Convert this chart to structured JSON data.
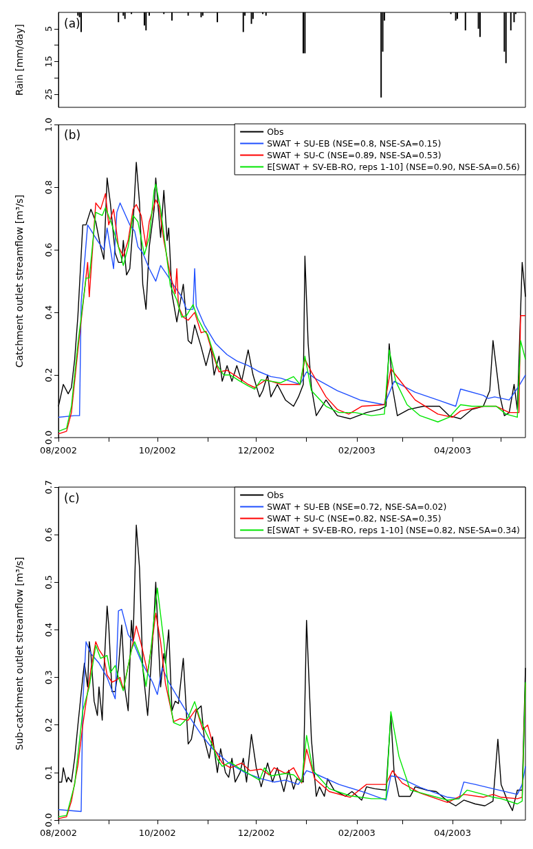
{
  "chart_data": [
    {
      "type": "bar",
      "title": "(a)",
      "ylabel": "Rain [mm/day]",
      "xlim": [
        "2002-08-01",
        "2003-05-16"
      ],
      "ylim": [
        29,
        0
      ],
      "yticks": [
        5,
        {
          "value": 10,
          "label": null
        },
        15,
        {
          "value": 20,
          "label": null
        },
        25
      ],
      "tick_labels": "y",
      "color": "#000000",
      "x": [
        "2002-08-13",
        "2002-08-14",
        "2002-08-15",
        "2002-09-07",
        "2002-09-10",
        "2002-09-11",
        "2002-09-15",
        "2002-09-23",
        "2002-09-24",
        "2002-09-26",
        "2002-10-05",
        "2002-10-10",
        "2002-10-20",
        "2002-10-28",
        "2002-10-29",
        "2002-11-07",
        "2002-11-23",
        "2002-11-24",
        "2002-11-28",
        "2002-11-29",
        "2002-12-05",
        "2002-12-07",
        "2002-12-30",
        "2002-12-31",
        "2003-02-16",
        "2003-02-17",
        "2003-02-18",
        "2003-03-31",
        "2003-04-03",
        "2003-04-04",
        "2003-04-09",
        "2003-04-17",
        "2003-04-18",
        "2003-05-03",
        "2003-05-04",
        "2003-05-07",
        "2003-05-09",
        "2003-05-10"
      ],
      "values": [
        1,
        1.5,
        6,
        3,
        1,
        2,
        0.5,
        4,
        5.5,
        1,
        0.5,
        2.5,
        1,
        1.5,
        1,
        3,
        6,
        1,
        3.5,
        2,
        0.5,
        1,
        12.5,
        12.5,
        26,
        12,
        2.5,
        0.5,
        2.5,
        2,
        5.5,
        5,
        7.5,
        12,
        15.5,
        5.5,
        3,
        0.5
      ]
    },
    {
      "type": "line",
      "title": "(b)",
      "ylabel": "Catchment outlet streamflow [m³/s]",
      "legend": "top right",
      "xlim": [
        "2002-08-01",
        "2003-05-16"
      ],
      "xticks": [
        {
          "value": "2002-08-01",
          "label": "08/2002"
        },
        {
          "value": "2002-09-01",
          "label": null
        },
        {
          "value": "2002-10-01",
          "label": "10/2002"
        },
        {
          "value": "2002-11-01",
          "label": null
        },
        {
          "value": "2002-12-01",
          "label": "12/2002"
        },
        {
          "value": "2003-01-01",
          "label": null
        },
        {
          "value": "2003-02-01",
          "label": "02/2003"
        },
        {
          "value": "2003-03-01",
          "label": null
        },
        {
          "value": "2003-04-01",
          "label": "04/2003"
        },
        {
          "value": "2003-05-01",
          "label": null
        }
      ],
      "ylim": [
        0,
        1
      ],
      "yticks": [
        {
          "value": 0,
          "label": "0.0"
        },
        {
          "value": 0.2,
          "label": "0.2"
        },
        {
          "value": 0.4,
          "label": "0.4"
        },
        {
          "value": 0.6,
          "label": "0.6"
        },
        {
          "value": 0.8,
          "label": "0.8"
        },
        {
          "value": 1,
          "label": "1.0"
        }
      ],
      "series": [
        {
          "name": "Obs",
          "color": "#000000",
          "x": [
            "2002-08-01",
            "2002-08-04",
            "2002-08-07",
            "2002-08-09",
            "2002-08-11",
            "2002-08-13",
            "2002-08-16",
            "2002-08-18",
            "2002-08-21",
            "2002-08-24",
            "2002-08-27",
            "2002-08-29",
            "2002-08-31",
            "2002-09-02",
            "2002-09-05",
            "2002-09-07",
            "2002-09-09",
            "2002-09-10",
            "2002-09-12",
            "2002-09-14",
            "2002-09-16",
            "2002-09-18",
            "2002-09-20",
            "2002-09-22",
            "2002-09-24",
            "2002-09-26",
            "2002-09-29",
            "2002-09-30",
            "2002-10-03",
            "2002-10-05",
            "2002-10-07",
            "2002-10-08",
            "2002-10-10",
            "2002-10-13",
            "2002-10-15",
            "2002-10-17",
            "2002-10-20",
            "2002-10-22",
            "2002-10-24",
            "2002-10-28",
            "2002-10-31",
            "2002-11-03",
            "2002-11-05",
            "2002-11-08",
            "2002-11-10",
            "2002-11-13",
            "2002-11-16",
            "2002-11-19",
            "2002-11-22",
            "2002-11-26",
            "2002-11-29",
            "2002-12-03",
            "2002-12-05",
            "2002-12-08",
            "2002-12-10",
            "2002-12-14",
            "2002-12-19",
            "2002-12-24",
            "2002-12-27",
            "2002-12-30",
            "2002-12-31",
            "2003-01-02",
            "2003-01-04",
            "2003-01-07",
            "2003-01-13",
            "2003-01-20",
            "2003-01-28",
            "2003-02-07",
            "2003-02-15",
            "2003-02-19",
            "2003-02-21",
            "2003-02-23",
            "2003-02-26",
            "2003-03-05",
            "2003-03-14",
            "2003-03-24",
            "2003-03-30",
            "2003-04-06",
            "2003-04-13",
            "2003-04-20",
            "2003-04-24",
            "2003-04-26",
            "2003-04-30",
            "2003-05-03",
            "2003-05-06",
            "2003-05-09",
            "2003-05-11",
            "2003-05-14",
            "2003-05-16"
          ],
          "values": [
            0.1,
            0.17,
            0.14,
            0.16,
            0.25,
            0.39,
            0.68,
            0.68,
            0.73,
            0.69,
            0.61,
            0.57,
            0.83,
            0.75,
            0.59,
            0.56,
            0.56,
            0.63,
            0.52,
            0.54,
            0.68,
            0.88,
            0.75,
            0.49,
            0.41,
            0.61,
            0.73,
            0.83,
            0.64,
            0.79,
            0.63,
            0.67,
            0.46,
            0.37,
            0.43,
            0.49,
            0.31,
            0.3,
            0.36,
            0.29,
            0.23,
            0.29,
            0.2,
            0.26,
            0.18,
            0.23,
            0.18,
            0.23,
            0.18,
            0.28,
            0.2,
            0.13,
            0.15,
            0.2,
            0.13,
            0.17,
            0.12,
            0.1,
            0.13,
            0.17,
            0.58,
            0.3,
            0.16,
            0.07,
            0.12,
            0.07,
            0.06,
            0.08,
            0.09,
            0.1,
            0.3,
            0.16,
            0.07,
            0.09,
            0.1,
            0.1,
            0.07,
            0.06,
            0.09,
            0.1,
            0.15,
            0.31,
            0.14,
            0.07,
            0.08,
            0.17,
            0.09,
            0.56,
            0.45
          ]
        },
        {
          "name": "SWAT + SU-EB (NSE=0.8, NSE-SA=0.15)",
          "color": "#1f4fff",
          "x": [
            "2002-08-01",
            "2002-08-11",
            "2002-08-14",
            "2002-08-15",
            "2002-08-19",
            "2002-08-25",
            "2002-08-29",
            "2002-08-31",
            "2002-09-04",
            "2002-09-06",
            "2002-09-08",
            "2002-09-14",
            "2002-09-17",
            "2002-09-19",
            "2002-09-22",
            "2002-09-26",
            "2002-09-30",
            "2002-10-03",
            "2002-10-07",
            "2002-10-12",
            "2002-10-16",
            "2002-10-19",
            "2002-10-23",
            "2002-10-24",
            "2002-10-25",
            "2002-10-30",
            "2002-11-06",
            "2002-11-13",
            "2002-11-19",
            "2002-11-26",
            "2002-12-03",
            "2002-12-10",
            "2002-12-16",
            "2002-12-28",
            "2003-01-01",
            "2003-01-06",
            "2003-01-20",
            "2003-02-03",
            "2003-02-18",
            "2003-02-24",
            "2003-03-09",
            "2003-03-23",
            "2003-04-03",
            "2003-04-06",
            "2003-04-20",
            "2003-04-23",
            "2003-04-27",
            "2003-05-06",
            "2003-05-12",
            "2003-05-16"
          ],
          "values": [
            0.065,
            0.07,
            0.07,
            0.43,
            0.68,
            0.63,
            0.6,
            0.67,
            0.54,
            0.72,
            0.75,
            0.68,
            0.66,
            0.61,
            0.59,
            0.54,
            0.5,
            0.55,
            0.52,
            0.48,
            0.45,
            0.41,
            0.41,
            0.54,
            0.42,
            0.36,
            0.3,
            0.265,
            0.245,
            0.23,
            0.21,
            0.195,
            0.19,
            0.17,
            0.21,
            0.19,
            0.15,
            0.12,
            0.105,
            0.18,
            0.145,
            0.12,
            0.1,
            0.155,
            0.135,
            0.125,
            0.13,
            0.12,
            0.165,
            0.2
          ]
        },
        {
          "name": "SWAT + SU-C (NSE=0.89, NSE-SA=0.53)",
          "color": "#ff0000",
          "x": [
            "2002-08-01",
            "2002-08-06",
            "2002-08-09",
            "2002-08-13",
            "2002-08-19",
            "2002-08-20",
            "2002-08-24",
            "2002-08-27",
            "2002-08-30",
            "2002-09-01",
            "2002-09-04",
            "2002-09-07",
            "2002-09-10",
            "2002-09-13",
            "2002-09-16",
            "2002-09-18",
            "2002-09-21",
            "2002-09-24",
            "2002-09-26",
            "2002-09-30",
            "2002-10-02",
            "2002-10-05",
            "2002-10-09",
            "2002-10-12",
            "2002-10-13",
            "2002-10-14",
            "2002-10-17",
            "2002-10-20",
            "2002-10-24",
            "2002-10-28",
            "2002-10-31",
            "2002-11-04",
            "2002-11-08",
            "2002-11-13",
            "2002-11-19",
            "2002-11-26",
            "2002-11-30",
            "2002-12-07",
            "2002-12-16",
            "2002-12-28",
            "2002-12-31",
            "2003-01-04",
            "2003-01-13",
            "2003-01-20",
            "2003-01-27",
            "2003-02-04",
            "2003-02-18",
            "2003-02-22",
            "2003-03-03",
            "2003-03-09",
            "2003-03-23",
            "2003-04-01",
            "2003-04-06",
            "2003-04-20",
            "2003-04-28",
            "2003-05-06",
            "2003-05-12",
            "2003-05-13",
            "2003-05-16"
          ],
          "values": [
            0.012,
            0.02,
            0.08,
            0.28,
            0.56,
            0.45,
            0.75,
            0.73,
            0.78,
            0.68,
            0.73,
            0.61,
            0.58,
            0.63,
            0.73,
            0.745,
            0.71,
            0.61,
            0.69,
            0.76,
            0.74,
            0.63,
            0.52,
            0.46,
            0.54,
            0.42,
            0.385,
            0.375,
            0.4,
            0.335,
            0.34,
            0.27,
            0.21,
            0.215,
            0.195,
            0.17,
            0.16,
            0.185,
            0.17,
            0.17,
            0.25,
            0.21,
            0.13,
            0.09,
            0.075,
            0.1,
            0.105,
            0.22,
            0.16,
            0.12,
            0.075,
            0.065,
            0.085,
            0.1,
            0.1,
            0.08,
            0.08,
            0.39,
            0.39
          ]
        },
        {
          "name": "E[SWAT + SV-EB-RO, reps 1-10] (NSE=0.90, NSE-SA=0.56)",
          "color": "#00e600",
          "x": [
            "2002-08-01",
            "2002-08-06",
            "2002-08-09",
            "2002-08-13",
            "2002-08-18",
            "2002-08-20",
            "2002-08-24",
            "2002-08-28",
            "2002-08-30",
            "2002-09-03",
            "2002-09-07",
            "2002-09-10",
            "2002-09-13",
            "2002-09-16",
            "2002-09-19",
            "2002-09-23",
            "2002-09-26",
            "2002-09-29",
            "2002-09-30",
            "2002-10-03",
            "2002-10-06",
            "2002-10-09",
            "2002-10-13",
            "2002-10-16",
            "2002-10-19",
            "2002-10-23",
            "2002-10-26",
            "2002-10-30",
            "2002-11-01",
            "2002-11-07",
            "2002-11-11",
            "2002-11-15",
            "2002-11-21",
            "2002-11-26",
            "2002-11-30",
            "2002-12-04",
            "2002-12-10",
            "2002-12-16",
            "2002-12-24",
            "2002-12-28",
            "2002-12-31",
            "2003-01-04",
            "2003-01-13",
            "2003-01-21",
            "2003-01-31",
            "2003-02-10",
            "2003-02-18",
            "2003-02-21",
            "2003-02-25",
            "2003-03-04",
            "2003-03-12",
            "2003-03-23",
            "2003-03-30",
            "2003-04-06",
            "2003-04-13",
            "2003-04-28",
            "2003-05-04",
            "2003-05-11",
            "2003-05-13",
            "2003-05-16"
          ],
          "values": [
            0.02,
            0.03,
            0.1,
            0.3,
            0.51,
            0.51,
            0.72,
            0.71,
            0.735,
            0.68,
            0.61,
            0.55,
            0.61,
            0.71,
            0.69,
            0.585,
            0.64,
            0.79,
            0.81,
            0.73,
            0.61,
            0.485,
            0.44,
            0.385,
            0.39,
            0.425,
            0.38,
            0.34,
            0.33,
            0.23,
            0.2,
            0.2,
            0.18,
            0.165,
            0.155,
            0.185,
            0.18,
            0.175,
            0.195,
            0.17,
            0.26,
            0.15,
            0.1,
            0.08,
            0.08,
            0.07,
            0.075,
            0.28,
            0.18,
            0.105,
            0.07,
            0.05,
            0.065,
            0.105,
            0.1,
            0.1,
            0.075,
            0.065,
            0.31,
            0.25
          ]
        }
      ]
    },
    {
      "type": "line",
      "title": "(c)",
      "ylabel": "Sub-catchment outlet streamflow [m³/s]",
      "legend": "top right",
      "xlim": [
        "2002-08-01",
        "2003-05-16"
      ],
      "xticks": [
        {
          "value": "2002-08-01",
          "label": "08/2002"
        },
        {
          "value": "2002-09-01",
          "label": null
        },
        {
          "value": "2002-10-01",
          "label": "10/2002"
        },
        {
          "value": "2002-11-01",
          "label": null
        },
        {
          "value": "2002-12-01",
          "label": "12/2002"
        },
        {
          "value": "2003-01-01",
          "label": null
        },
        {
          "value": "2003-02-01",
          "label": "02/2003"
        },
        {
          "value": "2003-03-01",
          "label": null
        },
        {
          "value": "2003-04-01",
          "label": "04/2003"
        },
        {
          "value": "2003-05-01",
          "label": null
        }
      ],
      "ylim": [
        0,
        0.7
      ],
      "yticks": [
        {
          "value": 0,
          "label": "0.0"
        },
        0.1,
        0.2,
        0.3,
        0.4,
        0.5,
        0.6,
        0.7
      ],
      "series": [
        {
          "name": "Obs",
          "color": "#000000",
          "x": [
            "2002-08-01",
            "2002-08-03",
            "2002-08-04",
            "2002-08-06",
            "2002-08-07",
            "2002-08-09",
            "2002-08-11",
            "2002-08-13",
            "2002-08-16",
            "2002-08-17",
            "2002-08-19",
            "2002-08-20",
            "2002-08-21",
            "2002-08-23",
            "2002-08-25",
            "2002-08-26",
            "2002-08-28",
            "2002-08-29",
            "2002-08-31",
            "2002-09-01",
            "2002-09-03",
            "2002-09-05",
            "2002-09-07",
            "2002-09-09",
            "2002-09-11",
            "2002-09-13",
            "2002-09-15",
            "2002-09-16",
            "2002-09-18",
            "2002-09-20",
            "2002-09-22",
            "2002-09-25",
            "2002-09-27",
            "2002-09-29",
            "2002-09-30",
            "2002-10-02",
            "2002-10-03",
            "2002-10-05",
            "2002-10-06",
            "2002-10-08",
            "2002-10-10",
            "2002-10-12",
            "2002-10-14",
            "2002-10-17",
            "2002-10-20",
            "2002-10-22",
            "2002-10-25",
            "2002-10-28",
            "2002-10-30",
            "2002-11-02",
            "2002-11-04",
            "2002-11-07",
            "2002-11-09",
            "2002-11-12",
            "2002-11-14",
            "2002-11-16",
            "2002-11-18",
            "2002-11-21",
            "2002-11-23",
            "2002-11-25",
            "2002-11-28",
            "2002-12-01",
            "2002-12-04",
            "2002-12-08",
            "2002-12-11",
            "2002-12-14",
            "2002-12-18",
            "2002-12-21",
            "2002-12-24",
            "2002-12-26",
            "2002-12-30",
            "2003-01-01",
            "2003-01-04",
            "2003-01-07",
            "2003-01-09",
            "2003-01-12",
            "2003-01-14",
            "2003-01-18",
            "2003-01-25",
            "2003-01-29",
            "2003-02-04",
            "2003-02-07",
            "2003-02-12",
            "2003-02-19",
            "2003-02-22",
            "2003-02-24",
            "2003-02-27",
            "2003-03-06",
            "2003-03-09",
            "2003-03-16",
            "2003-03-22",
            "2003-03-29",
            "2003-04-03",
            "2003-04-08",
            "2003-04-15",
            "2003-04-21",
            "2003-04-26",
            "2003-04-29",
            "2003-05-01",
            "2003-05-05",
            "2003-05-08",
            "2003-05-11",
            "2003-05-14",
            "2003-05-16"
          ],
          "values": [
            0.08,
            0.08,
            0.11,
            0.08,
            0.09,
            0.08,
            0.13,
            0.2,
            0.3,
            0.33,
            0.28,
            0.375,
            0.35,
            0.25,
            0.22,
            0.28,
            0.21,
            0.31,
            0.45,
            0.41,
            0.27,
            0.27,
            0.32,
            0.41,
            0.275,
            0.23,
            0.42,
            0.375,
            0.62,
            0.53,
            0.32,
            0.22,
            0.32,
            0.43,
            0.5,
            0.35,
            0.28,
            0.35,
            0.33,
            0.4,
            0.23,
            0.25,
            0.245,
            0.34,
            0.16,
            0.17,
            0.23,
            0.24,
            0.17,
            0.13,
            0.175,
            0.1,
            0.15,
            0.1,
            0.09,
            0.13,
            0.08,
            0.1,
            0.13,
            0.08,
            0.18,
            0.11,
            0.07,
            0.12,
            0.08,
            0.11,
            0.06,
            0.105,
            0.065,
            0.087,
            0.08,
            0.42,
            0.17,
            0.05,
            0.07,
            0.05,
            0.087,
            0.063,
            0.05,
            0.06,
            0.042,
            0.07,
            0.066,
            0.063,
            0.22,
            0.1,
            0.05,
            0.05,
            0.07,
            0.063,
            0.06,
            0.04,
            0.03,
            0.042,
            0.034,
            0.03,
            0.04,
            0.17,
            0.075,
            0.04,
            0.02,
            0.063,
            0.063,
            0.32
          ]
        },
        {
          "name": "SWAT + SU-EB (NSE=0.72, NSE-SA=0.02)",
          "color": "#1f4fff",
          "x": [
            "2002-08-01",
            "2002-08-15",
            "2002-08-16",
            "2002-08-18",
            "2002-08-21",
            "2002-08-26",
            "2002-08-31",
            "2002-09-05",
            "2002-09-07",
            "2002-09-09",
            "2002-09-13",
            "2002-09-16",
            "2002-09-21",
            "2002-09-28",
            "2002-10-01",
            "2002-10-04",
            "2002-10-08",
            "2002-10-15",
            "2002-10-21",
            "2002-10-28",
            "2002-11-04",
            "2002-11-14",
            "2002-11-24",
            "2002-12-04",
            "2002-12-12",
            "2002-12-19",
            "2002-12-27",
            "2003-01-01",
            "2003-01-06",
            "2003-01-21",
            "2003-02-07",
            "2003-02-19",
            "2003-02-22",
            "2003-02-27",
            "2003-03-12",
            "2003-03-29",
            "2003-04-05",
            "2003-04-08",
            "2003-04-15",
            "2003-04-26",
            "2003-05-11",
            "2003-05-14",
            "2003-05-16"
          ],
          "values": [
            0.022,
            0.018,
            0.245,
            0.375,
            0.35,
            0.33,
            0.3,
            0.255,
            0.44,
            0.443,
            0.39,
            0.375,
            0.334,
            0.29,
            0.264,
            0.32,
            0.29,
            0.25,
            0.216,
            0.18,
            0.15,
            0.12,
            0.1,
            0.087,
            0.08,
            0.084,
            0.075,
            0.104,
            0.098,
            0.075,
            0.057,
            0.042,
            0.093,
            0.09,
            0.069,
            0.048,
            0.045,
            0.08,
            0.075,
            0.066,
            0.054,
            0.075,
            0.113
          ]
        },
        {
          "name": "SWAT + SU-C (NSE=0.82, NSE-SA=0.35)",
          "color": "#ff0000",
          "x": [
            "2002-08-01",
            "2002-08-06",
            "2002-08-09",
            "2002-08-13",
            "2002-08-16",
            "2002-08-19",
            "2002-08-21",
            "2002-08-24",
            "2002-08-26",
            "2002-08-29",
            "2002-08-31",
            "2002-09-03",
            "2002-09-05",
            "2002-09-08",
            "2002-09-10",
            "2002-09-14",
            "2002-09-18",
            "2002-09-21",
            "2002-09-25",
            "2002-09-28",
            "2002-09-30",
            "2002-10-03",
            "2002-10-06",
            "2002-10-11",
            "2002-10-15",
            "2002-10-20",
            "2002-10-25",
            "2002-10-29",
            "2002-11-01",
            "2002-11-05",
            "2002-11-10",
            "2002-11-15",
            "2002-11-22",
            "2002-11-27",
            "2002-12-04",
            "2002-12-09",
            "2002-12-12",
            "2002-12-19",
            "2002-12-24",
            "2002-12-29",
            "2003-01-01",
            "2003-01-06",
            "2003-01-15",
            "2003-01-28",
            "2003-02-07",
            "2003-02-19",
            "2003-02-23",
            "2003-03-01",
            "2003-03-12",
            "2003-03-29",
            "2003-04-08",
            "2003-04-20",
            "2003-04-26",
            "2003-05-01",
            "2003-05-11",
            "2003-05-14",
            "2003-05-16"
          ],
          "values": [
            0.003,
            0.007,
            0.04,
            0.116,
            0.2,
            0.27,
            0.317,
            0.375,
            0.358,
            0.343,
            0.305,
            0.29,
            0.293,
            0.3,
            0.275,
            0.34,
            0.408,
            0.37,
            0.31,
            0.38,
            0.435,
            0.375,
            0.287,
            0.207,
            0.213,
            0.21,
            0.234,
            0.19,
            0.2,
            0.15,
            0.12,
            0.11,
            0.12,
            0.104,
            0.107,
            0.095,
            0.11,
            0.098,
            0.11,
            0.078,
            0.149,
            0.087,
            0.06,
            0.048,
            0.075,
            0.075,
            0.104,
            0.078,
            0.057,
            0.037,
            0.054,
            0.048,
            0.054,
            0.048,
            0.045,
            0.048,
            0.287
          ]
        },
        {
          "name": "E[SWAT + SV-EB-RO, reps 1-10] (NSE=0.82, NSE-SA=0.34)",
          "color": "#00e600",
          "x": [
            "2002-08-01",
            "2002-08-06",
            "2002-08-11",
            "2002-08-16",
            "2002-08-20",
            "2002-08-24",
            "2002-08-27",
            "2002-08-31",
            "2002-09-02",
            "2002-09-05",
            "2002-09-07",
            "2002-09-10",
            "2002-09-15",
            "2002-09-17",
            "2002-09-21",
            "2002-09-24",
            "2002-09-27",
            "2002-09-30",
            "2002-10-01",
            "2002-10-05",
            "2002-10-08",
            "2002-10-11",
            "2002-10-15",
            "2002-10-20",
            "2002-10-24",
            "2002-10-27",
            "2002-10-31",
            "2002-11-04",
            "2002-11-07",
            "2002-11-10",
            "2002-11-15",
            "2002-11-20",
            "2002-11-25",
            "2002-12-03",
            "2002-12-06",
            "2002-12-10",
            "2002-12-19",
            "2002-12-24",
            "2002-12-29",
            "2003-01-01",
            "2003-01-05",
            "2003-01-15",
            "2003-01-28",
            "2003-02-10",
            "2003-02-19",
            "2003-02-22",
            "2003-02-27",
            "2003-03-06",
            "2003-03-16",
            "2003-03-29",
            "2003-04-05",
            "2003-04-10",
            "2003-04-20",
            "2003-04-26",
            "2003-05-01",
            "2003-05-11",
            "2003-05-14",
            "2003-05-16"
          ],
          "values": [
            0.007,
            0.01,
            0.075,
            0.23,
            0.28,
            0.367,
            0.34,
            0.346,
            0.31,
            0.325,
            0.3,
            0.272,
            0.358,
            0.375,
            0.34,
            0.281,
            0.358,
            0.458,
            0.488,
            0.375,
            0.264,
            0.205,
            0.199,
            0.216,
            0.249,
            0.216,
            0.184,
            0.157,
            0.128,
            0.113,
            0.122,
            0.11,
            0.1,
            0.084,
            0.11,
            0.093,
            0.098,
            0.095,
            0.08,
            0.178,
            0.104,
            0.066,
            0.051,
            0.045,
            0.045,
            0.228,
            0.134,
            0.063,
            0.054,
            0.042,
            0.045,
            0.063,
            0.054,
            0.048,
            0.045,
            0.034,
            0.04,
            0.29
          ]
        }
      ]
    }
  ]
}
